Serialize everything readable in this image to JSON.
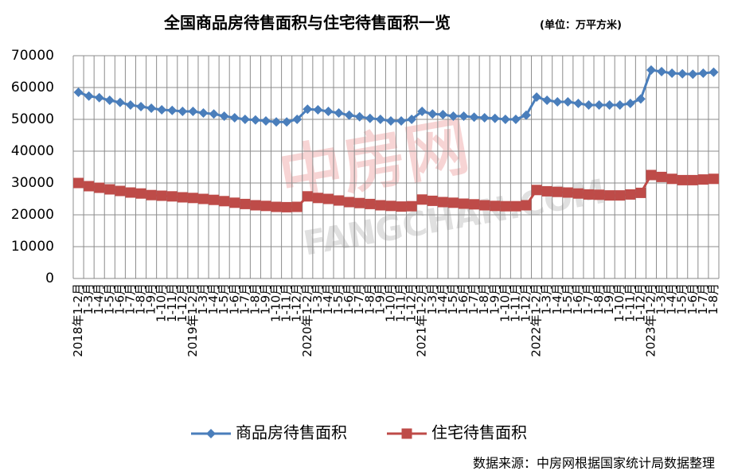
{
  "chart_data": {
    "type": "line",
    "title": "全国商品房待售面积与住宅待售面积一览",
    "subtitle": "(单位：万平方米)",
    "source": "数据来源：中房网根据国家统计局数据整理",
    "watermark": [
      "中房网",
      "FANGCHAN.COM"
    ],
    "categories": [
      "2018年1-2月",
      "1-3月",
      "1-4月",
      "1-5月",
      "1-6月",
      "1-7月",
      "1-8月",
      "1-9月",
      "1-10月",
      "1-11月",
      "1-12月",
      "2019年1-2月",
      "1-3月",
      "1-4月",
      "1-5月",
      "1-6月",
      "1-7月",
      "1-8月",
      "1-9月",
      "1-10月",
      "1-11月",
      "1-12月",
      "2020年1-2月",
      "1-3月",
      "1-4月",
      "1-5月",
      "1-6月",
      "1-7月",
      "1-8月",
      "1-9月",
      "1-10月",
      "1-11月",
      "1-12月",
      "2021年1-2月",
      "1-3月",
      "1-4月",
      "1-5月",
      "1-6月",
      "1-7月",
      "1-8月",
      "1-9月",
      "1-10月",
      "1-11月",
      "1-12月",
      "2022年1-2月",
      "1-3月",
      "1-4月",
      "1-5月",
      "1-6月",
      "1-7月",
      "1-8月",
      "1-9月",
      "1-10月",
      "1-11月",
      "1-12月",
      "2023年1-2月",
      "1-3月",
      "1-4月",
      "1-5月",
      "1-6月",
      "1-7月",
      "1-8月"
    ],
    "series": [
      {
        "name": "商品房待售面积",
        "color": "#4a7ebb",
        "marker": "diamond",
        "values": [
          58500,
          57300,
          56800,
          56000,
          55300,
          54500,
          54000,
          53500,
          53000,
          52800,
          52500,
          52500,
          52000,
          51700,
          51000,
          50500,
          50000,
          49800,
          49500,
          49200,
          49200,
          50000,
          53200,
          53000,
          52500,
          52000,
          51300,
          50800,
          50300,
          50000,
          49500,
          49500,
          50000,
          52500,
          51700,
          51500,
          51000,
          51000,
          50700,
          50500,
          50300,
          50000,
          50000,
          51300,
          57000,
          56000,
          55500,
          55500,
          55000,
          54500,
          54500,
          54500,
          54500,
          55000,
          56400,
          65500,
          65000,
          64500,
          64300,
          64200,
          64500,
          64800
        ]
      },
      {
        "name": "住宅待售面积",
        "color": "#be4b48",
        "marker": "square",
        "values": [
          30000,
          29000,
          28500,
          28000,
          27500,
          27000,
          26700,
          26200,
          26000,
          25800,
          25500,
          25300,
          25000,
          24700,
          24300,
          23800,
          23400,
          23000,
          22800,
          22500,
          22400,
          22500,
          25800,
          25300,
          25000,
          24500,
          24000,
          23700,
          23400,
          23000,
          22800,
          22600,
          22700,
          24800,
          24400,
          24000,
          23800,
          23500,
          23300,
          23000,
          22800,
          22700,
          22700,
          23000,
          27800,
          27400,
          27200,
          27000,
          26700,
          26400,
          26300,
          26100,
          26100,
          26400,
          26900,
          32500,
          31900,
          31300,
          30900,
          30900,
          31100,
          31300
        ]
      }
    ],
    "ylim": [
      0,
      70000
    ],
    "yticks": [
      0,
      10000,
      20000,
      30000,
      40000,
      50000,
      60000,
      70000
    ],
    "grid": true,
    "legend": "bottom"
  }
}
